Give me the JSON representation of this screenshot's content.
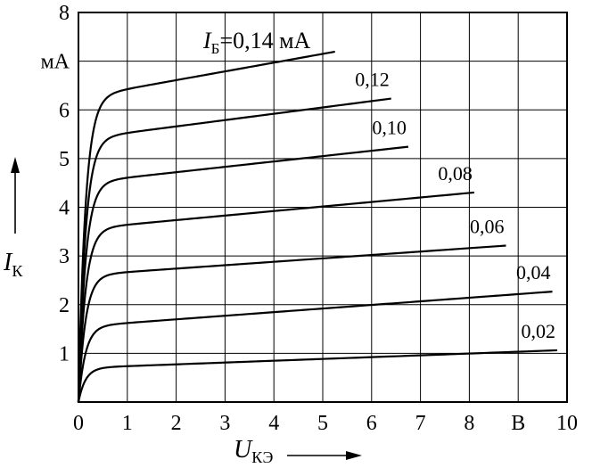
{
  "chart_data": {
    "type": "line",
    "x_unit": "В",
    "y_unit": "мА",
    "xlim": [
      0,
      10
    ],
    "ylim": [
      0,
      8
    ],
    "grid": true,
    "x_ticks": [
      "0",
      "1",
      "2",
      "3",
      "4",
      "5",
      "6",
      "7",
      "8",
      "В",
      "10"
    ],
    "y_ticks": [
      "1",
      "2",
      "3",
      "4",
      "5",
      "6",
      "мА",
      "8"
    ],
    "x_axis_label": {
      "main": "U",
      "sub": "КЭ"
    },
    "y_axis_label": {
      "main": "I",
      "sub": "К"
    },
    "param_label": {
      "main": "I",
      "sub": "Б",
      "rest": "=0,14 мА"
    },
    "series": [
      {
        "name": "0,02",
        "knee": 0.7,
        "slope": 0.037,
        "xmax": 9.8,
        "points": [
          [
            0,
            0
          ],
          [
            0.6,
            0.7
          ],
          [
            1,
            0.72
          ],
          [
            3,
            0.78
          ],
          [
            5,
            0.85
          ],
          [
            7,
            0.93
          ],
          [
            9.8,
            1.05
          ]
        ]
      },
      {
        "name": "0,04",
        "knee": 1.55,
        "slope": 0.074,
        "xmax": 9.7,
        "points": [
          [
            0,
            0
          ],
          [
            0.6,
            1.55
          ],
          [
            1,
            1.58
          ],
          [
            3,
            1.72
          ],
          [
            5,
            1.86
          ],
          [
            7,
            2.02
          ],
          [
            9.7,
            2.25
          ]
        ]
      },
      {
        "name": "0,06",
        "knee": 2.6,
        "slope": 0.07,
        "xmax": 8.75,
        "points": [
          [
            0,
            0
          ],
          [
            0.6,
            2.6
          ],
          [
            1,
            2.63
          ],
          [
            3,
            2.77
          ],
          [
            5,
            2.92
          ],
          [
            7,
            3.08
          ],
          [
            8.75,
            3.22
          ]
        ]
      },
      {
        "name": "0,08",
        "knee": 3.55,
        "slope": 0.093,
        "xmax": 8.1,
        "points": [
          [
            0,
            0
          ],
          [
            0.6,
            3.55
          ],
          [
            1,
            3.58
          ],
          [
            3,
            3.77
          ],
          [
            5,
            3.96
          ],
          [
            7,
            4.15
          ],
          [
            8.1,
            4.25
          ]
        ]
      },
      {
        "name": "0,10",
        "knee": 4.5,
        "slope": 0.11,
        "xmax": 6.75,
        "points": [
          [
            0,
            0
          ],
          [
            0.6,
            4.5
          ],
          [
            1,
            4.54
          ],
          [
            3,
            4.76
          ],
          [
            5,
            4.98
          ],
          [
            6.75,
            5.13
          ]
        ]
      },
      {
        "name": "0,12",
        "knee": 5.4,
        "slope": 0.13,
        "xmax": 6.4,
        "points": [
          [
            0,
            0
          ],
          [
            0.6,
            5.4
          ],
          [
            1,
            5.45
          ],
          [
            3,
            5.71
          ],
          [
            5,
            5.97
          ],
          [
            6.4,
            6.1
          ]
        ]
      },
      {
        "name": "",
        "knee": 6.25,
        "slope": 0.18,
        "xmax": 5.25,
        "points": [
          [
            0,
            0
          ],
          [
            0.6,
            6.25
          ],
          [
            1,
            6.32
          ],
          [
            3,
            6.68
          ],
          [
            5,
            7.04
          ],
          [
            5.25,
            7.07
          ]
        ]
      }
    ]
  }
}
